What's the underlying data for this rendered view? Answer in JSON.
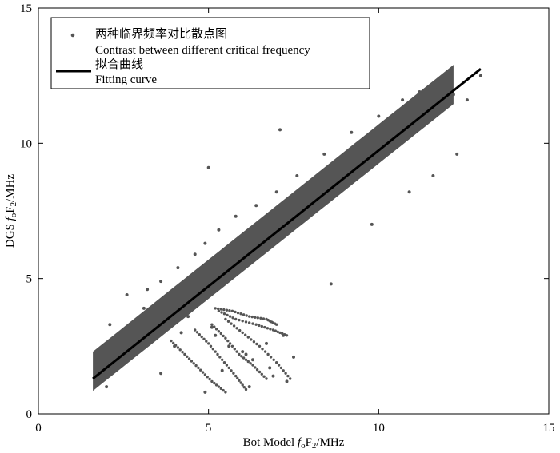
{
  "chart_data": {
    "type": "scatter",
    "title": "",
    "xlabel": {
      "prefix": "Bot Model  ",
      "f": "f",
      "f_sub": "o",
      "F": "F",
      "F_sub": "2",
      "suffix": "/MHz"
    },
    "ylabel": {
      "prefix": "DGS ",
      "f": "f",
      "f_sub": "o",
      "F": "F",
      "F_sub": "2",
      "suffix": "/MHz"
    },
    "xlim": [
      0,
      15
    ],
    "ylim": [
      0,
      15
    ],
    "x_ticks": [
      "0",
      "5",
      "10",
      "15"
    ],
    "y_ticks": [
      "0",
      "5",
      "10",
      "15"
    ],
    "grid": false,
    "legend": {
      "placement": "top-left",
      "entries": [
        {
          "label_cn": "两种临界频率对比散点图",
          "label_en": "Contrast between different critical frequency",
          "marker": "dot"
        },
        {
          "label_cn": "拟合曲线",
          "label_en": "Fitting curve",
          "marker": "line"
        }
      ]
    },
    "colors": {
      "points": "#555555",
      "fit": "#000000",
      "axes": "#000000"
    },
    "fit_line": {
      "x": [
        1.6,
        13.0
      ],
      "y": [
        1.3,
        12.75
      ]
    },
    "band": {
      "x_start": 1.6,
      "x_end": 12.2,
      "intercept": -0.3,
      "slope": 1.0,
      "upper_width": 0.55,
      "lower_width": 0.7
    },
    "series": [
      {
        "x": [
          2.1,
          2.6,
          3.2,
          3.6,
          4.1,
          4.6,
          4.9,
          5.3,
          5.8,
          6.4,
          7.0,
          7.6,
          8.4,
          9.2,
          10.0,
          10.7,
          11.2,
          11.7,
          12.2,
          12.6,
          13.0,
          7.1,
          5.0,
          3.6,
          3.1,
          4.2,
          5.4,
          6.2,
          6.9,
          7.3,
          6.0,
          5.2,
          4.9,
          6.1,
          6.7,
          7.5,
          8.6,
          9.8,
          10.9,
          11.6,
          12.3,
          1.7,
          2.0,
          4.0,
          4.4,
          5.1,
          5.6,
          6.3,
          6.8,
          7.2
        ],
        "y": [
          3.3,
          4.4,
          4.6,
          4.9,
          5.4,
          5.9,
          6.3,
          6.8,
          7.3,
          7.7,
          8.2,
          8.8,
          9.6,
          10.4,
          11.0,
          11.6,
          11.9,
          12.1,
          11.8,
          11.6,
          12.5,
          10.5,
          9.1,
          1.5,
          3.9,
          3.0,
          1.6,
          1.0,
          1.4,
          1.2,
          2.3,
          2.9,
          0.8,
          2.2,
          2.6,
          2.1,
          4.8,
          7.0,
          8.2,
          8.8,
          9.6,
          1.2,
          1.0,
          2.5,
          3.6,
          3.2,
          2.5,
          2.0,
          1.7,
          2.9
        ]
      }
    ],
    "tails": [
      {
        "x": [
          3.9,
          4.3,
          4.7,
          5.1,
          5.5
        ],
        "y": [
          2.7,
          2.2,
          1.7,
          1.2,
          0.8
        ]
      },
      {
        "x": [
          4.6,
          5.0,
          5.4,
          5.8,
          6.1
        ],
        "y": [
          3.1,
          2.6,
          2.0,
          1.4,
          0.9
        ]
      },
      {
        "x": [
          5.1,
          5.5,
          5.9,
          6.3,
          6.7
        ],
        "y": [
          3.3,
          2.8,
          2.2,
          1.8,
          1.3
        ]
      },
      {
        "x": [
          5.5,
          6.0,
          6.5,
          7.0,
          7.4
        ],
        "y": [
          3.5,
          3.0,
          2.5,
          1.9,
          1.3
        ]
      },
      {
        "x": [
          5.3,
          5.8,
          6.4,
          6.9,
          7.3
        ],
        "y": [
          3.8,
          3.5,
          3.3,
          3.1,
          2.9
        ]
      },
      {
        "x": [
          5.2,
          5.7,
          6.2,
          6.7,
          7.0
        ],
        "y": [
          3.9,
          3.8,
          3.6,
          3.5,
          3.3
        ]
      }
    ]
  }
}
